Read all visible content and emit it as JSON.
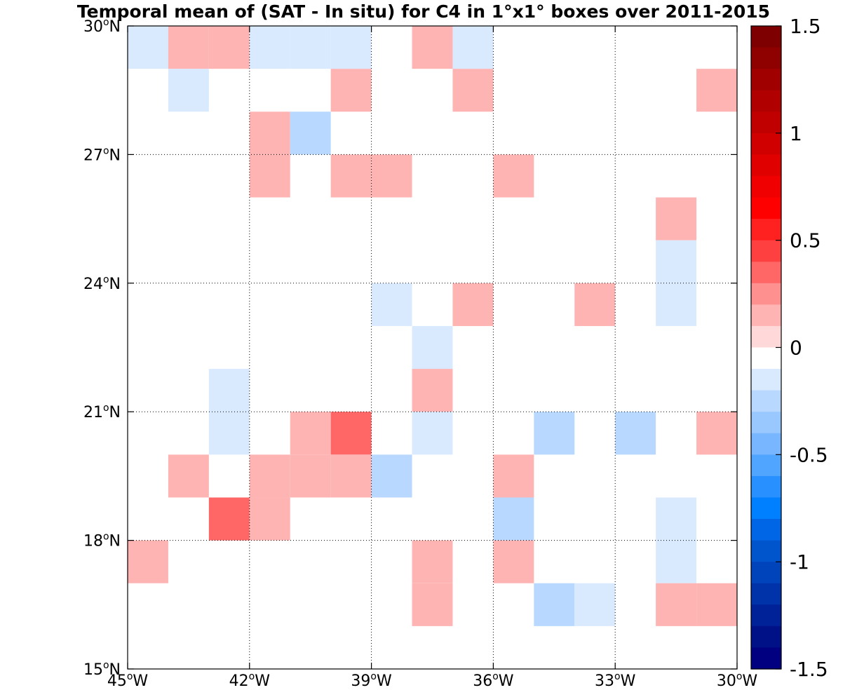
{
  "chart_data": {
    "type": "heatmap",
    "title": "Temporal mean of (SAT - In situ) for C4 in 1°x1° boxes over 2011-2015",
    "x_range": [
      -45,
      -30
    ],
    "y_range": [
      15,
      30
    ],
    "x_ticks": [
      {
        "value": -45,
        "num": "45",
        "dir": "W"
      },
      {
        "value": -42,
        "num": "42",
        "dir": "W"
      },
      {
        "value": -39,
        "num": "39",
        "dir": "W"
      },
      {
        "value": -36,
        "num": "36",
        "dir": "W"
      },
      {
        "value": -33,
        "num": "33",
        "dir": "W"
      },
      {
        "value": -30,
        "num": "30",
        "dir": "W"
      }
    ],
    "y_ticks": [
      {
        "value": 15,
        "num": "15",
        "dir": "N"
      },
      {
        "value": 18,
        "num": "18",
        "dir": "N"
      },
      {
        "value": 21,
        "num": "21",
        "dir": "N"
      },
      {
        "value": 24,
        "num": "24",
        "dir": "N"
      },
      {
        "value": 27,
        "num": "27",
        "dir": "N"
      },
      {
        "value": 30,
        "num": "30",
        "dir": "N"
      }
    ],
    "grid": true,
    "colorbar": {
      "range": [
        -1.5,
        1.5
      ],
      "levels": 30,
      "ticks": [
        {
          "value": 1.5,
          "label": "1.5"
        },
        {
          "value": 1,
          "label": "1"
        },
        {
          "value": 0.5,
          "label": "0.5"
        },
        {
          "value": 0,
          "label": "0"
        },
        {
          "value": -0.5,
          "label": "-0.5"
        },
        {
          "value": -1,
          "label": "-1"
        },
        {
          "value": -1.5,
          "label": "-1.5"
        }
      ],
      "colors_top_to_bottom": [
        "#7f0000",
        "#8f0000",
        "#a00000",
        "#b00000",
        "#c00000",
        "#d00000",
        "#e00000",
        "#f00000",
        "#ff0000",
        "#ff2020",
        "#ff4040",
        "#ff6666",
        "#ff9090",
        "#ffb4b4",
        "#ffd9d9",
        "#ffffff",
        "#d9eaff",
        "#b8d8ff",
        "#99c8ff",
        "#78b6ff",
        "#50a5ff",
        "#2890ff",
        "#007fff",
        "#0066e6",
        "#0055cc",
        "#0044bb",
        "#0033aa",
        "#002299",
        "#001188",
        "#000080"
      ]
    },
    "cells": [
      {
        "lon": -45,
        "lat": 29,
        "value": -0.1
      },
      {
        "lon": -44,
        "lat": 29,
        "value": 0.1
      },
      {
        "lon": -43,
        "lat": 29,
        "value": 0.2
      },
      {
        "lon": -42,
        "lat": 29,
        "value": -0.1
      },
      {
        "lon": -41,
        "lat": 29,
        "value": -0.1
      },
      {
        "lon": -40,
        "lat": 29,
        "value": -0.1
      },
      {
        "lon": -38,
        "lat": 29,
        "value": 0.1
      },
      {
        "lon": -37,
        "lat": 29,
        "value": -0.1
      },
      {
        "lon": -44,
        "lat": 28,
        "value": -0.1
      },
      {
        "lon": -40,
        "lat": 28,
        "value": 0.1
      },
      {
        "lon": -37,
        "lat": 28,
        "value": 0.1
      },
      {
        "lon": -31,
        "lat": 28,
        "value": 0.1
      },
      {
        "lon": -42,
        "lat": 27,
        "value": 0.2
      },
      {
        "lon": -41,
        "lat": 27,
        "value": -0.2
      },
      {
        "lon": -42,
        "lat": 26,
        "value": 0.1
      },
      {
        "lon": -40,
        "lat": 26,
        "value": 0.1
      },
      {
        "lon": -39,
        "lat": 26,
        "value": 0.1
      },
      {
        "lon": -36,
        "lat": 26,
        "value": 0.2
      },
      {
        "lon": -32,
        "lat": 25,
        "value": 0.1
      },
      {
        "lon": -32,
        "lat": 24,
        "value": -0.1
      },
      {
        "lon": -39,
        "lat": 23,
        "value": -0.1
      },
      {
        "lon": -37,
        "lat": 23,
        "value": 0.2
      },
      {
        "lon": -34,
        "lat": 23,
        "value": 0.1
      },
      {
        "lon": -32,
        "lat": 23,
        "value": -0.1
      },
      {
        "lon": -38,
        "lat": 22,
        "value": -0.1
      },
      {
        "lon": -43,
        "lat": 21,
        "value": -0.1
      },
      {
        "lon": -38,
        "lat": 21,
        "value": 0.2
      },
      {
        "lon": -43,
        "lat": 20,
        "value": -0.1
      },
      {
        "lon": -41,
        "lat": 20,
        "value": 0.1
      },
      {
        "lon": -40,
        "lat": 20,
        "value": 0.4
      },
      {
        "lon": -38,
        "lat": 20,
        "value": -0.1
      },
      {
        "lon": -35,
        "lat": 20,
        "value": -0.2
      },
      {
        "lon": -33,
        "lat": 20,
        "value": -0.2
      },
      {
        "lon": -31,
        "lat": 20,
        "value": 0.2
      },
      {
        "lon": -44,
        "lat": 19,
        "value": 0.1
      },
      {
        "lon": -42,
        "lat": 19,
        "value": 0.1
      },
      {
        "lon": -41,
        "lat": 19,
        "value": 0.1
      },
      {
        "lon": -40,
        "lat": 19,
        "value": 0.2
      },
      {
        "lon": -39,
        "lat": 19,
        "value": -0.2
      },
      {
        "lon": -36,
        "lat": 19,
        "value": 0.1
      },
      {
        "lon": -43,
        "lat": 18,
        "value": 0.3
      },
      {
        "lon": -42,
        "lat": 18,
        "value": 0.1
      },
      {
        "lon": -36,
        "lat": 18,
        "value": -0.2
      },
      {
        "lon": -32,
        "lat": 18,
        "value": -0.1
      },
      {
        "lon": -45,
        "lat": 17,
        "value": 0.1
      },
      {
        "lon": -38,
        "lat": 17,
        "value": 0.1
      },
      {
        "lon": -36,
        "lat": 17,
        "value": 0.1
      },
      {
        "lon": -32,
        "lat": 17,
        "value": -0.1
      },
      {
        "lon": -38,
        "lat": 16,
        "value": 0.2
      },
      {
        "lon": -35,
        "lat": 16,
        "value": -0.2
      },
      {
        "lon": -34,
        "lat": 16,
        "value": -0.1
      },
      {
        "lon": -32,
        "lat": 16,
        "value": 0.1
      },
      {
        "lon": -31,
        "lat": 16,
        "value": 0.2
      }
    ]
  }
}
